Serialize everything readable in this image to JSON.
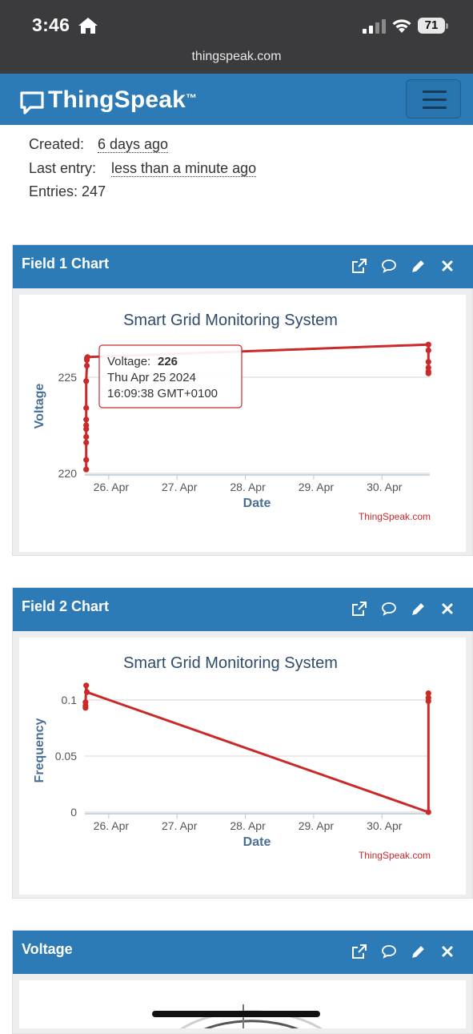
{
  "status": {
    "time": "3:46",
    "battery": "71",
    "url": "thingspeak.com"
  },
  "brand": {
    "name": "ThingSpeak",
    "tm": "™"
  },
  "channel": {
    "created_label": "Created:",
    "created_value": "6 days ago",
    "last_label": "Last entry:",
    "last_value": "less than a minute ago",
    "entries_label": "Entries:",
    "entries_value": "247"
  },
  "panels": [
    {
      "title": "Field 1 Chart"
    },
    {
      "title": "Field 2 Chart"
    },
    {
      "title": "Voltage"
    }
  ],
  "charts": {
    "credit": "ThingSpeak.com",
    "field1": {
      "title": "Smart Grid Monitoring System",
      "ylabel": "Voltage",
      "xlabel": "Date",
      "tooltip": {
        "series": "Voltage:",
        "value": "226",
        "date": "Thu Apr 25 2024",
        "time": "16:09:38 GMT+0100"
      }
    },
    "field2": {
      "title": "Smart Grid Monitoring System",
      "ylabel": "Frequency",
      "xlabel": "Date"
    }
  },
  "chart_data": [
    {
      "type": "line",
      "title": "Smart Grid Monitoring System",
      "xlabel": "Date",
      "ylabel": "Voltage",
      "xticks": [
        "26. Apr",
        "27. Apr",
        "28. Apr",
        "29. Apr",
        "30. Apr"
      ],
      "xlim": [
        25.65,
        30.7
      ],
      "yticks": [
        220,
        225
      ],
      "ylim": [
        220,
        227
      ],
      "grid": true,
      "color": "#c92a2a",
      "x": [
        25.67,
        25.67,
        25.67,
        25.67,
        25.67,
        25.67,
        25.67,
        25.67,
        25.67,
        25.68,
        25.68,
        25.68,
        25.69,
        30.68,
        30.68,
        30.68,
        30.68,
        30.68,
        30.68
      ],
      "y": [
        220.2,
        220.7,
        221.6,
        221.9,
        222.3,
        222.5,
        222.8,
        223.4,
        224.8,
        225.6,
        225.9,
        226.0,
        226.05,
        226.7,
        226.4,
        225.8,
        225.5,
        225.3,
        225.2
      ]
    },
    {
      "type": "line",
      "title": "Smart Grid Monitoring System",
      "xlabel": "Date",
      "ylabel": "Frequency",
      "xticks": [
        "26. Apr",
        "27. Apr",
        "28. Apr",
        "29. Apr",
        "30. Apr"
      ],
      "xlim": [
        25.65,
        30.7
      ],
      "yticks": [
        0,
        0.05,
        0.1
      ],
      "ylim": [
        0,
        0.11
      ],
      "grid": true,
      "color": "#c92a2a",
      "x": [
        25.66,
        25.66,
        25.66,
        25.67,
        25.68,
        30.68,
        30.68,
        30.68,
        30.68
      ],
      "y": [
        0.093,
        0.095,
        0.098,
        0.113,
        0.107,
        0.0,
        0.099,
        0.102,
        0.106
      ]
    }
  ],
  "icons": [
    "home-icon",
    "signal-icon",
    "wifi-icon",
    "speech-bubble-icon",
    "external-link-icon",
    "comment-icon",
    "pencil-icon",
    "close-icon",
    "hamburger-icon"
  ]
}
